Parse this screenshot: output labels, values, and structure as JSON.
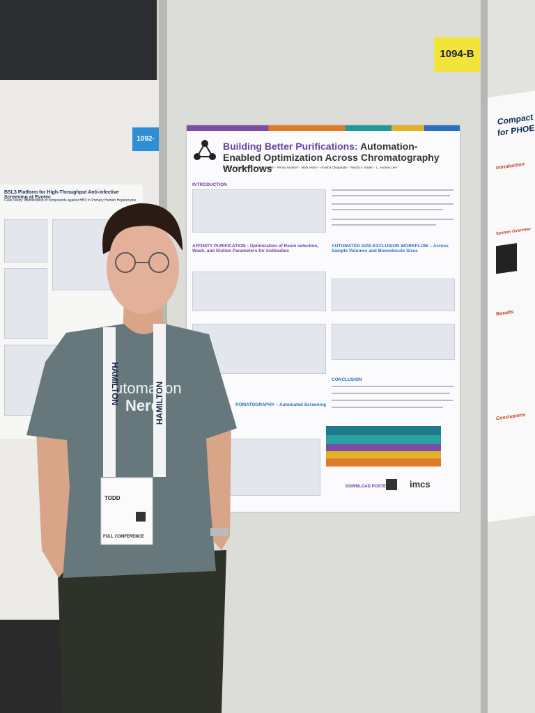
{
  "booth_labels": {
    "left": "1092-",
    "center": "1094-B"
  },
  "center_poster": {
    "title_highlight": "Building Better Purifications:",
    "title_rest": "Automation-Enabled Optimization Across Chromatography Workflows",
    "authors": "Gracie A. Anderson¹ · B. Todd Mullis¹ · Penny Hamlyn¹ · Mark Hicks¹ · Anusha Chaparala¹ · Patrick A. Kates¹ · L. Andrew Lee¹",
    "sections": [
      "INTRODUCTION",
      "AFFINITY PURIFICATION - Optimization of Resin selection, Wash, and Elution Parameters for Antibodies",
      "AUTOMATED SIZE-EXCLUSION WORKFLOW – Across Sample Volumes and Biomolecule Sizes",
      "CONCLUSION",
      "ROMATOGRAPHY – Automated Screening"
    ],
    "download": "DOWNLOAD POSTER",
    "logo": "imcs"
  },
  "left_poster": {
    "title": "BSL3 Platform for High-Throughput Anti-infective Screening at Evotec",
    "subtitle": "Case Study: Identification of compounds against HBV in Primary Human Hepatocytes"
  },
  "right_poster": {
    "title": "Compact Inc",
    "title2": "for PHOENIX",
    "sections": [
      "Introduction",
      "System Overview",
      "Results",
      "Conclusions"
    ]
  },
  "person": {
    "shirt": [
      "Automation",
      "Nerd"
    ],
    "lanyard": "HAMILTON",
    "badge_name": "TODD",
    "badge_type": "FULL CONFERENCE"
  }
}
